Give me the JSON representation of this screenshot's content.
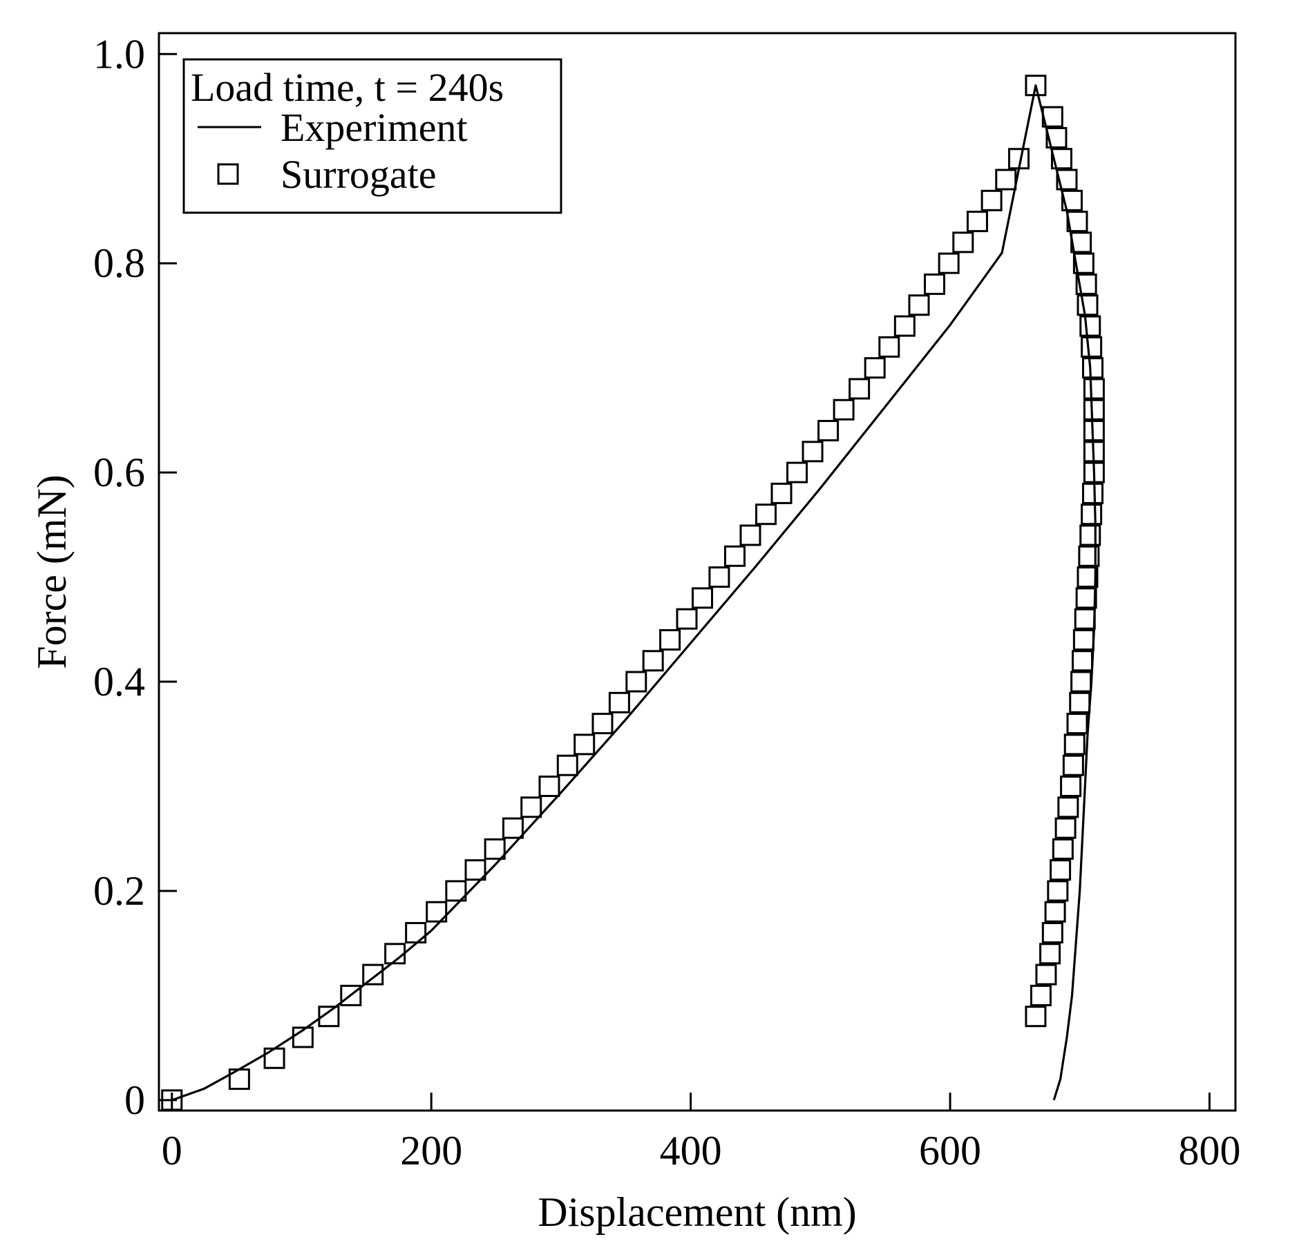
{
  "chart_data": {
    "type": "line",
    "xlabel": "Displacement (nm)",
    "ylabel": "Force (mN)",
    "xlim": [
      -10,
      820
    ],
    "ylim": [
      -0.01,
      1.02
    ],
    "xticks": [
      0,
      200,
      400,
      600,
      800
    ],
    "xtick_labels": [
      "0",
      "200",
      "400",
      "600",
      "800"
    ],
    "yticks": [
      0,
      0.2,
      0.4,
      0.6,
      0.8,
      1.0
    ],
    "ytick_labels": [
      "0",
      "0.2",
      "0.4",
      "0.6",
      "0.8",
      "1.0"
    ],
    "grid": false,
    "legend": {
      "position": "top-left",
      "title": "Load time, t = 240s",
      "entries": [
        {
          "label": "Experiment",
          "marker": "line"
        },
        {
          "label": "Surrogate",
          "marker": "square"
        }
      ]
    },
    "series": [
      {
        "name": "Experiment",
        "style": "line",
        "color": "#000000",
        "x": [
          0,
          25,
          50,
          75,
          100,
          125,
          150,
          175,
          200,
          250,
          300,
          350,
          400,
          450,
          500,
          550,
          600,
          640,
          666,
          672,
          680,
          690,
          697,
          704,
          708,
          711,
          712,
          712,
          711,
          709,
          706,
          704,
          702,
          700,
          697,
          694,
          690,
          685,
          680
        ],
        "y": [
          0.0,
          0.011,
          0.028,
          0.046,
          0.066,
          0.088,
          0.112,
          0.136,
          0.162,
          0.226,
          0.294,
          0.364,
          0.437,
          0.51,
          0.585,
          0.663,
          0.741,
          0.81,
          0.97,
          0.94,
          0.9,
          0.85,
          0.8,
          0.75,
          0.7,
          0.6,
          0.55,
          0.5,
          0.45,
          0.4,
          0.35,
          0.3,
          0.25,
          0.2,
          0.15,
          0.1,
          0.06,
          0.02,
          0.0
        ]
      },
      {
        "name": "Surrogate",
        "style": "markers",
        "marker": "square",
        "color": "#000000",
        "x": [
          0,
          52,
          79,
          101,
          121,
          138,
          155,
          172,
          188,
          204,
          219,
          234,
          249,
          263,
          277,
          291,
          305,
          318,
          332,
          345,
          358,
          371,
          384,
          397,
          409,
          422,
          434,
          446,
          458,
          470,
          482,
          494,
          506,
          518,
          530,
          542,
          553,
          565,
          576,
          588,
          599,
          610,
          621,
          632,
          643,
          653,
          666,
          679,
          682,
          686,
          690,
          694,
          698,
          701,
          703,
          705,
          706,
          708,
          709,
          710,
          711,
          711,
          711,
          711,
          711,
          710,
          709,
          708,
          707,
          706,
          705,
          704,
          703,
          702,
          701,
          700,
          698,
          696,
          695,
          693,
          691,
          689,
          687,
          685,
          683,
          681,
          679,
          677,
          674,
          670,
          666
        ],
        "y": [
          0.0,
          0.02,
          0.04,
          0.06,
          0.08,
          0.1,
          0.12,
          0.14,
          0.16,
          0.18,
          0.2,
          0.22,
          0.24,
          0.26,
          0.28,
          0.3,
          0.32,
          0.34,
          0.36,
          0.38,
          0.4,
          0.42,
          0.44,
          0.46,
          0.48,
          0.5,
          0.52,
          0.54,
          0.56,
          0.58,
          0.6,
          0.62,
          0.64,
          0.66,
          0.68,
          0.7,
          0.72,
          0.74,
          0.76,
          0.78,
          0.8,
          0.82,
          0.84,
          0.86,
          0.88,
          0.9,
          0.97,
          0.94,
          0.92,
          0.9,
          0.88,
          0.86,
          0.84,
          0.82,
          0.8,
          0.78,
          0.76,
          0.74,
          0.72,
          0.7,
          0.68,
          0.66,
          0.64,
          0.62,
          0.6,
          0.58,
          0.56,
          0.54,
          0.52,
          0.5,
          0.48,
          0.46,
          0.44,
          0.42,
          0.4,
          0.38,
          0.36,
          0.34,
          0.32,
          0.3,
          0.28,
          0.26,
          0.24,
          0.22,
          0.2,
          0.18,
          0.16,
          0.14,
          0.12,
          0.1,
          0.08
        ]
      }
    ]
  }
}
